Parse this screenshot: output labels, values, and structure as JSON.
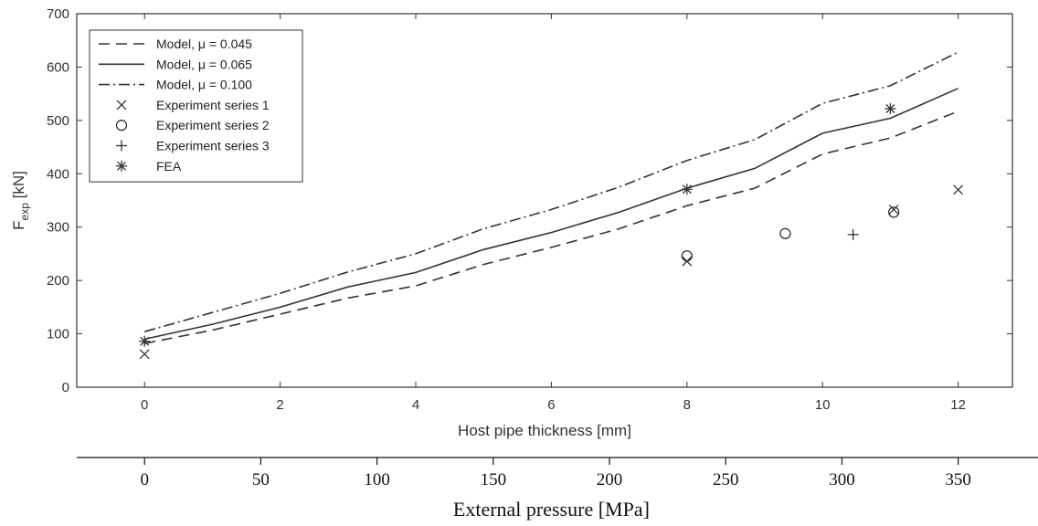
{
  "chart_data": {
    "type": "line",
    "xlabel": "Host pipe thickness [mm]",
    "ylabel_main": "F",
    "ylabel_sub": "exp",
    "ylabel_unit": " [kN]",
    "xlim": [
      -1,
      12.8
    ],
    "ylim": [
      0,
      700
    ],
    "xticks": [
      0,
      2,
      4,
      6,
      8,
      10,
      12
    ],
    "yticks": [
      0,
      100,
      200,
      300,
      400,
      500,
      600,
      700
    ],
    "secondary_axis": {
      "label": "External pressure [MPa]",
      "ticks": [
        0,
        50,
        100,
        150,
        200,
        250,
        300,
        350
      ],
      "mm_per_unit": 0.034286
    },
    "series": [
      {
        "name": "Model, μ = 0.045",
        "kind": "line",
        "dash": "12,7",
        "x": [
          0,
          1,
          2,
          3,
          4,
          5,
          6,
          7,
          8,
          9,
          10,
          11,
          12
        ],
        "y": [
          82,
          107,
          137,
          167,
          190,
          230,
          262,
          297,
          340,
          373,
          437,
          467,
          517
        ]
      },
      {
        "name": "Model, μ = 0.065",
        "kind": "line",
        "dash": "",
        "x": [
          0,
          1,
          2,
          3,
          4,
          5,
          6,
          7,
          8,
          9,
          10,
          11,
          12
        ],
        "y": [
          90,
          118,
          150,
          188,
          215,
          258,
          290,
          328,
          373,
          410,
          476,
          504,
          560
        ]
      },
      {
        "name": "Model, μ = 0.100",
        "kind": "line",
        "dash": "12,4,2,4",
        "x": [
          0,
          1,
          2,
          3,
          4,
          5,
          6,
          7,
          8,
          9,
          10,
          11,
          12
        ],
        "y": [
          104,
          140,
          176,
          216,
          250,
          297,
          333,
          375,
          425,
          464,
          532,
          565,
          628
        ]
      },
      {
        "name": "Experiment series 1",
        "kind": "marker",
        "marker": "x",
        "x": [
          0,
          8,
          11.05,
          12
        ],
        "y": [
          62,
          236,
          333,
          370
        ]
      },
      {
        "name": "Experiment series 2",
        "kind": "marker",
        "marker": "o",
        "x": [
          8,
          9.45,
          11.05
        ],
        "y": [
          246,
          288,
          328
        ]
      },
      {
        "name": "Experiment series 3",
        "kind": "marker",
        "marker": "+",
        "x": [
          10.45
        ],
        "y": [
          286
        ]
      },
      {
        "name": "FEA",
        "kind": "marker",
        "marker": "*",
        "x": [
          0,
          8,
          11
        ],
        "y": [
          86,
          371,
          522
        ]
      }
    ],
    "legend_position": "top-left",
    "grid": false
  }
}
